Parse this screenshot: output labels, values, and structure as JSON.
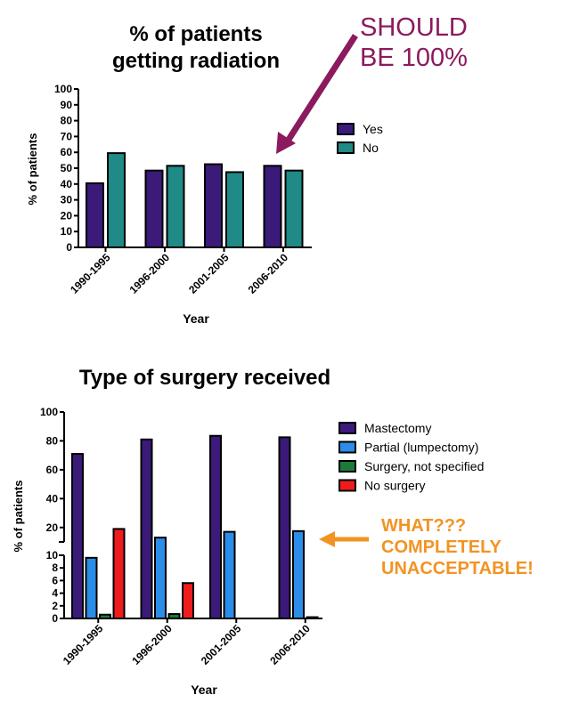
{
  "chart_data": [
    {
      "type": "bar",
      "title": "% of patients getting radiation",
      "title_lines": [
        "% of patients",
        "getting radiation"
      ],
      "xlabel": "Year",
      "ylabel": "% of patients",
      "ylim": [
        0,
        100
      ],
      "yticks": [
        0,
        10,
        20,
        30,
        40,
        50,
        60,
        70,
        80,
        90,
        100
      ],
      "categories": [
        "1990-1995",
        "1996-2000",
        "2001-2005",
        "2006-2010"
      ],
      "series": [
        {
          "name": "Yes",
          "color": "#3b1a7a",
          "values": [
            40.5,
            48.5,
            52.5,
            51.5
          ]
        },
        {
          "name": "No",
          "color": "#1f8a86",
          "values": [
            59.5,
            51.5,
            47.5,
            48.5
          ]
        }
      ],
      "legend_position": "right",
      "annotation": {
        "lines": [
          "SHOULD",
          "BE 100%"
        ],
        "color": "#8b1a5e"
      }
    },
    {
      "type": "bar",
      "title": "Type of surgery received",
      "xlabel": "Year",
      "ylabel": "% of patients",
      "ylim": [
        0,
        100
      ],
      "y_axis_break": true,
      "yticks_lower": [
        0,
        2,
        4,
        6,
        8,
        10
      ],
      "yticks_upper": [
        20,
        40,
        60,
        80,
        100
      ],
      "categories": [
        "1990-1995",
        "1996-2000",
        "2001-2005",
        "2006-2010"
      ],
      "series": [
        {
          "name": "Mastectomy",
          "color": "#3b1a7a",
          "values": [
            71,
            81,
            83.5,
            82.5
          ]
        },
        {
          "name": "Partial (lumpectomy)",
          "color": "#2b8de8",
          "values": [
            9.6,
            13,
            17,
            17.5
          ]
        },
        {
          "name": "Surgery, not specified",
          "color": "#1d7a3a",
          "values": [
            0.6,
            0.7,
            0,
            0.2
          ]
        },
        {
          "name": "No surgery",
          "color": "#ee1c1c",
          "values": [
            19,
            5.6,
            0,
            0
          ]
        }
      ],
      "legend_position": "right",
      "annotation": {
        "lines": [
          "WHAT???",
          "COMPLETELY",
          "UNACCEPTABLE!"
        ],
        "color": "#f39323"
      }
    }
  ]
}
